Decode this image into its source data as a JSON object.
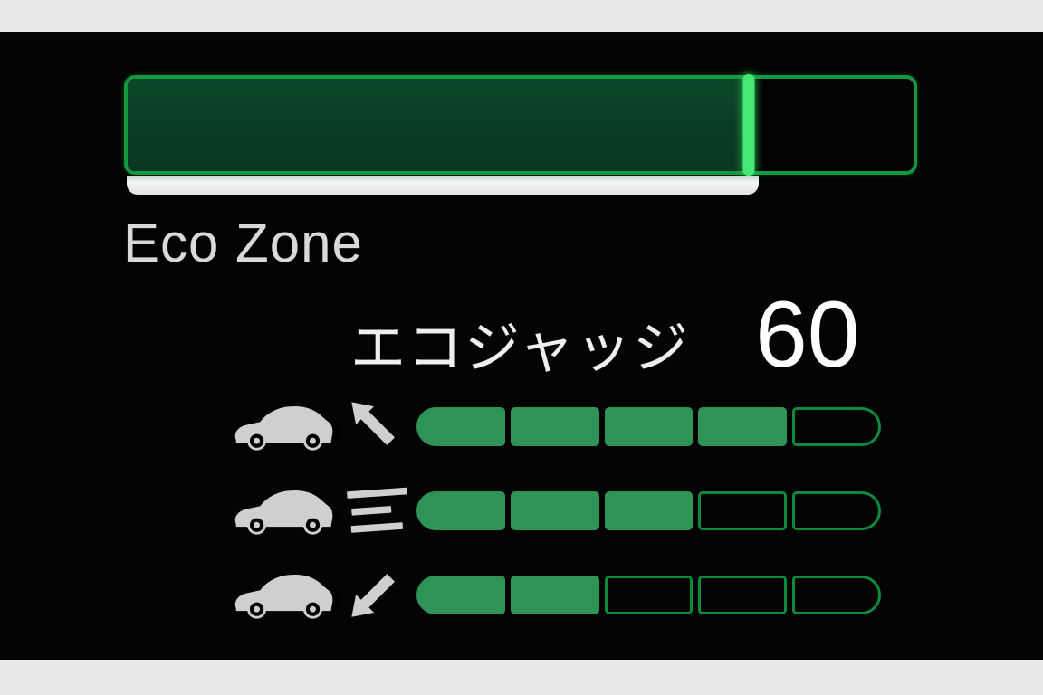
{
  "display": {
    "letterbox_color": "#e9e9e9",
    "background_color": "#030303",
    "colors": {
      "bar_border": "#13973f",
      "bar_fill_dark": "#0a3d22",
      "bar_edge_bright": "#44e873",
      "underline_white": "#ededed",
      "segment_fill": "#2d9456",
      "segment_border": "#0d8a3c",
      "text": "#e9e9e9"
    },
    "eco_zone": {
      "label": "Eco Zone",
      "fill_percent": 79
    },
    "eco_judge": {
      "label": "エコジャッジ",
      "score": "60"
    },
    "meters": [
      {
        "name": "acceleration",
        "icon": "car-accelerate-icon",
        "filled": 4,
        "total": 5
      },
      {
        "name": "cruising",
        "icon": "car-cruise-icon",
        "filled": 3,
        "total": 5
      },
      {
        "name": "deceleration",
        "icon": "car-decelerate-icon",
        "filled": 2,
        "total": 5
      }
    ]
  }
}
